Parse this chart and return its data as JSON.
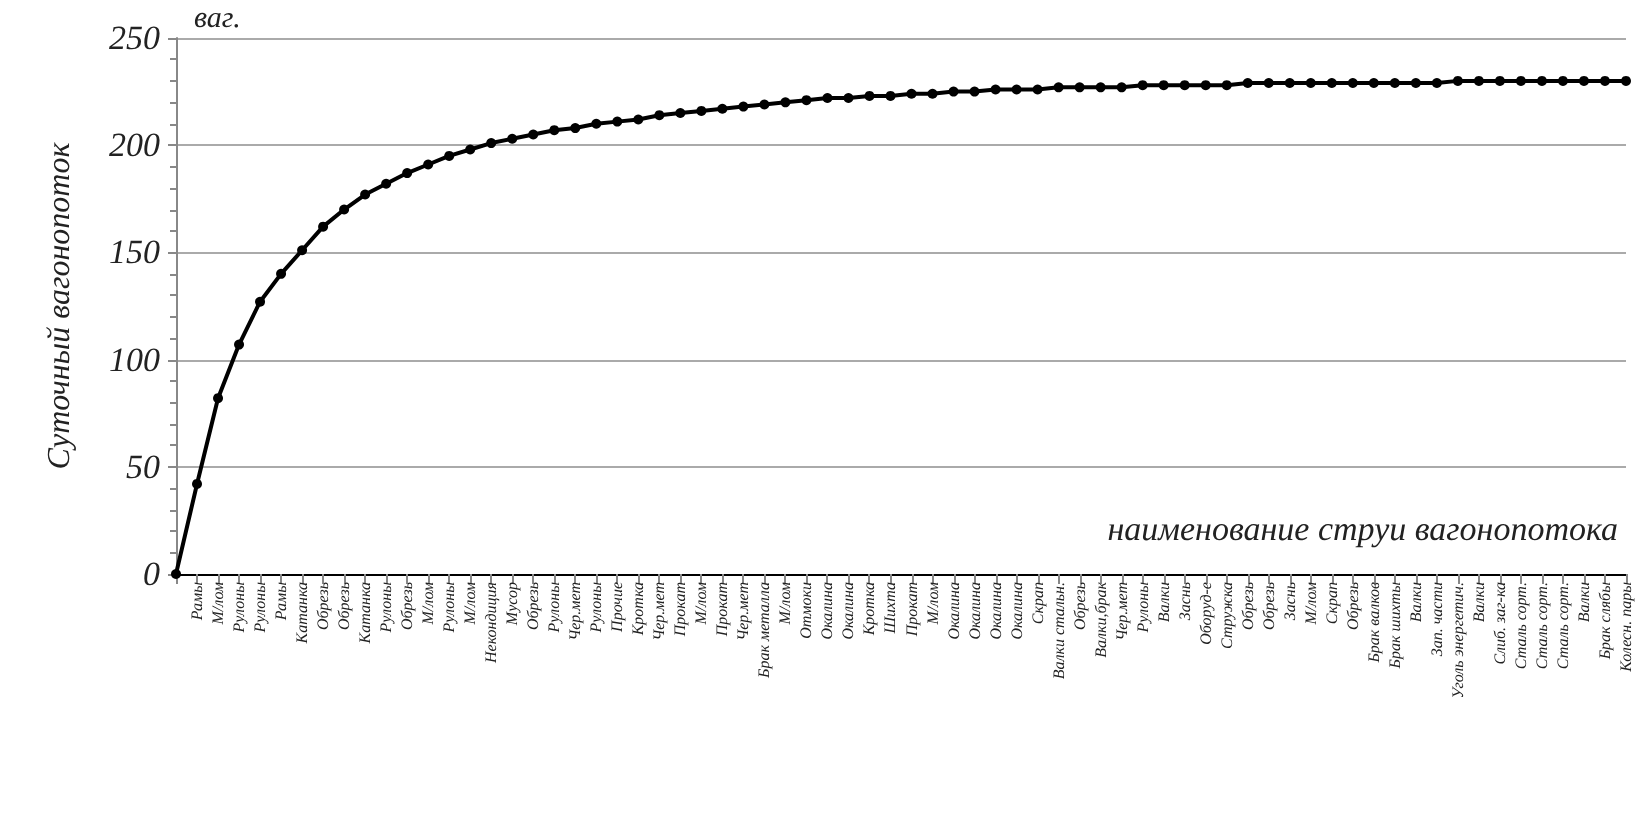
{
  "chart_data": {
    "type": "line",
    "ylabel": "Суточный вагонопоток",
    "xlabel": "наименование струи вагонопотока",
    "annotations": [
      "ваг."
    ],
    "categories": [
      null,
      "Рамы",
      "М/лом",
      "Рулоны",
      "Рулоны",
      "Рамы",
      "Катанка",
      "Обрезь",
      "Обрезь",
      "Катанка",
      "Рулоны",
      "Обрезь",
      "М/лом",
      "Рулоны",
      "М/лом",
      "Некондиция",
      "Мусор",
      "Обрезь",
      "Рулоны",
      "Чер.мет",
      "Рулоны",
      "Прочие",
      "Кротка",
      "Чер.мет",
      "Прокат",
      "М/лом",
      "Прокат",
      "Чер.мет",
      "Брак металла",
      "М/лом",
      "Отмоки",
      "Окалина",
      "Окалина",
      "Кротка",
      "Шихта",
      "Прокат",
      "М/лом",
      "Окалина",
      "Окалина",
      "Окалина",
      "Окалина",
      "Скрап",
      "Валки стальн.",
      "Обрезь",
      "Валки,брак",
      "Чер.мет",
      "Рулоны",
      "Валки",
      "Заснь",
      "Оборуд-е",
      "Стружка",
      "Обрезь",
      "Обрезь",
      "Заснь",
      "М/лом",
      "Скрап",
      "Обрезь",
      "Брак валков",
      "Брак шихты",
      "Валки",
      "Зап. части",
      "Уголь энергетич.",
      "Валки",
      "Слиб. заг-ка",
      "Сталь сорт.",
      "Сталь сорт.",
      "Сталь сорт.",
      "Валки",
      "Брак слябы",
      "Колесн. пары"
    ],
    "series": [
      {
        "color": "#000000",
        "values": [
          0,
          42,
          82,
          107,
          127,
          140,
          151,
          162,
          170,
          177,
          182,
          187,
          191,
          195,
          198,
          201,
          203,
          205,
          207,
          208,
          210,
          211,
          212,
          214,
          215,
          216,
          217,
          218,
          219,
          220,
          221,
          222,
          222,
          223,
          223,
          224,
          224,
          225,
          225,
          226,
          226,
          226,
          227,
          227,
          227,
          227,
          228,
          228,
          228,
          228,
          228,
          229,
          229,
          229,
          229,
          229,
          229,
          229,
          229,
          229,
          229,
          230,
          230,
          230,
          230,
          230,
          230,
          230,
          230,
          230
        ]
      }
    ],
    "ylim": [
      0,
      250
    ],
    "yticks": [
      0,
      50,
      100,
      150,
      200,
      250
    ],
    "grid": "y",
    "marker": "circle",
    "line_style": "solid"
  }
}
